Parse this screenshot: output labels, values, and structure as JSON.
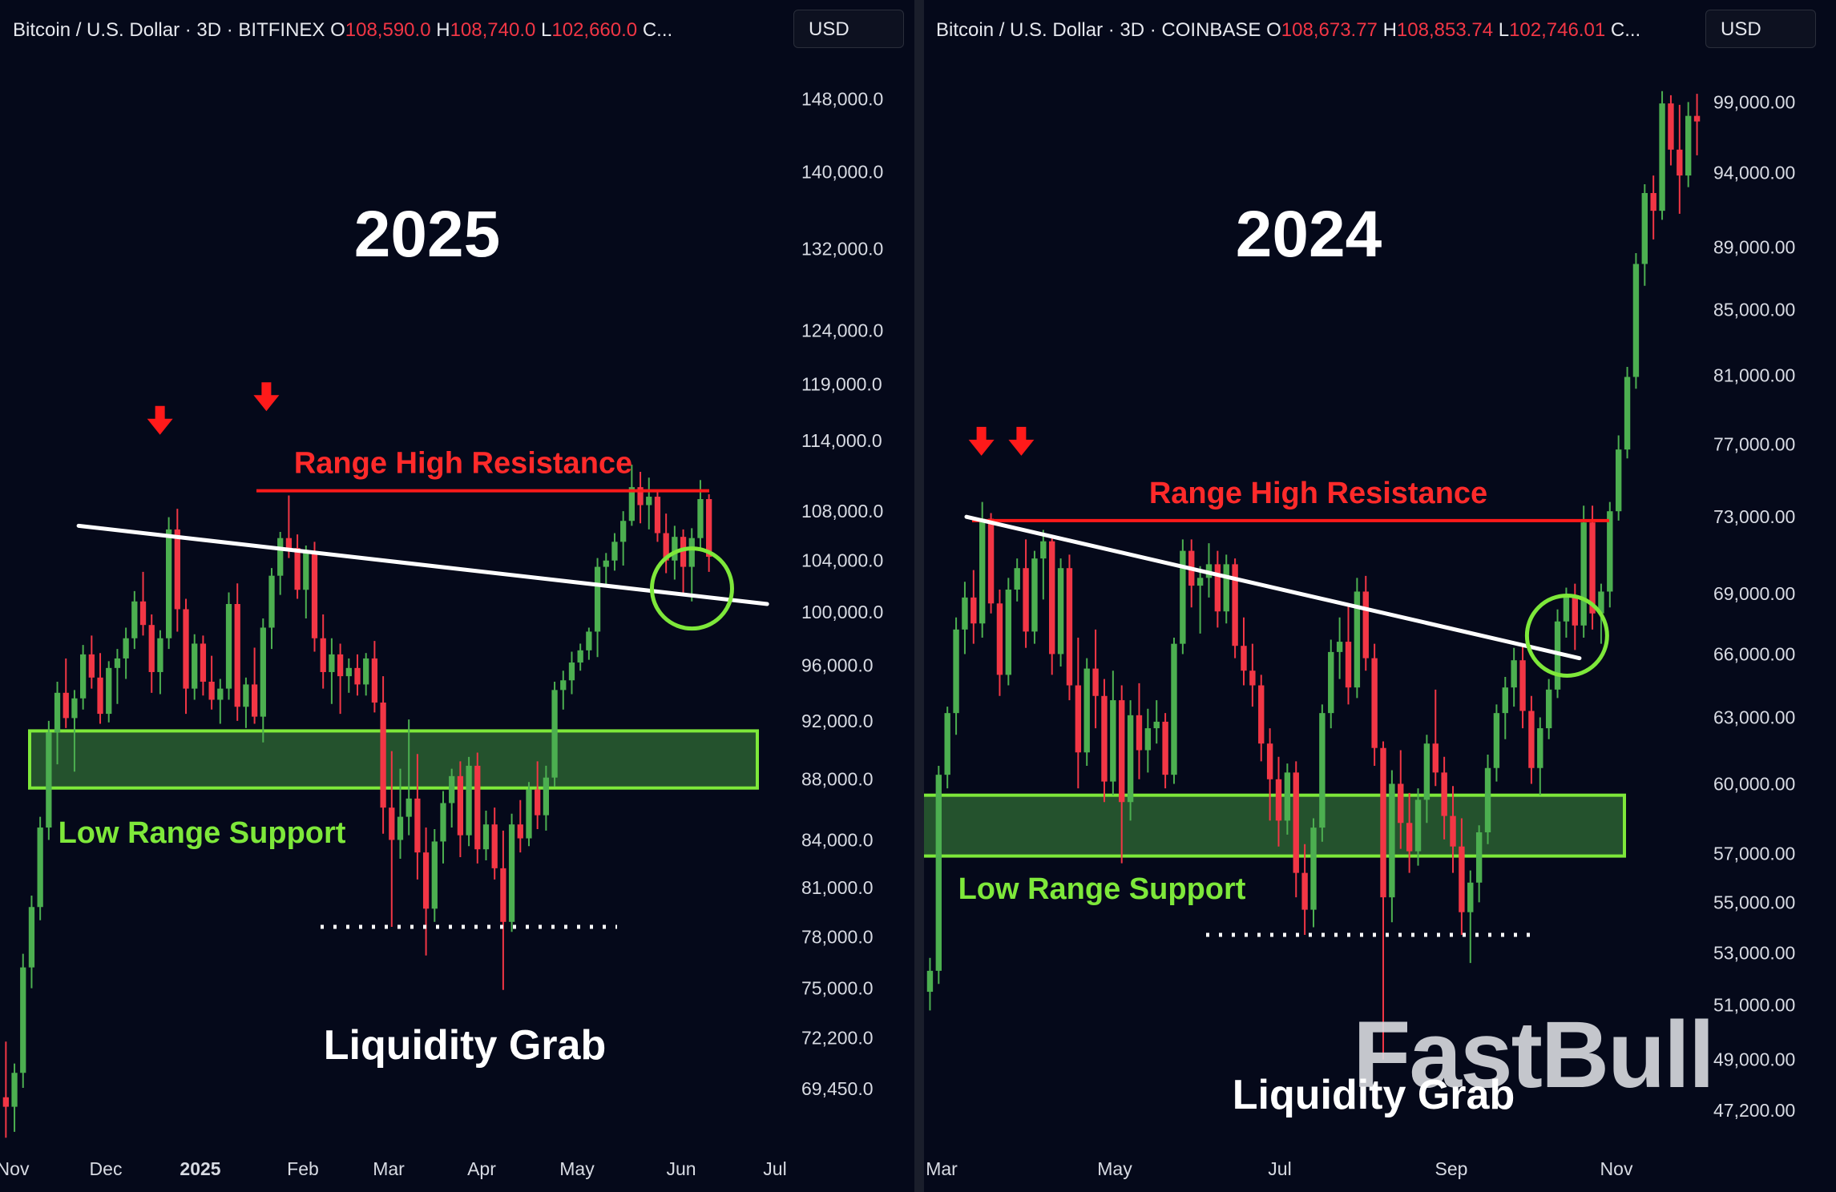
{
  "colors": {
    "up": "#4caf50",
    "down": "#f23645",
    "resistance": "#ff1a1a",
    "support": "#7ee83a",
    "trend": "#ffffff",
    "axis_text": "#d8dbe3",
    "bg": "#05091a"
  },
  "chart_data": [
    {
      "type": "candlestick",
      "header": {
        "symbol": "Bitcoin / U.S. Dollar · 3D · BITFINEX",
        "o_label": "O",
        "o": "108,590.0",
        "h_label": "H",
        "h": "108,740.0",
        "l_label": "L",
        "l": "102,660.0",
        "c_label": "C..."
      },
      "currency": "USD",
      "title": "2025",
      "yscale": "log",
      "ylim": [
        66500,
        152000
      ],
      "y_ticks": [
        "148,000.0",
        "140,000.0",
        "132,000.0",
        "124,000.0",
        "119,000.0",
        "114,000.0",
        "108,000.0",
        "104,000.0",
        "100,000.0",
        "96,000.0",
        "92,000.0",
        "88,000.0",
        "84,000.0",
        "81,000.0",
        "78,000.0",
        "75,000.0",
        "72,200.0",
        "69,450.0"
      ],
      "x_ticks": [
        "Nov",
        "Dec",
        "2025",
        "Feb",
        "Mar",
        "Apr",
        "May",
        "Jun",
        "Jul"
      ],
      "x_range": [
        "2024-11-01",
        "2025-07-01"
      ],
      "annotations": {
        "resistance": "Range High Resistance",
        "support": "Low Range Support",
        "liquidity": "Liquidity Grab"
      },
      "resistance_level": 109700,
      "support_zone": [
        87400,
        91300
      ],
      "liquidity_level": 78600,
      "trendline": [
        [
          "2024-11-21",
          106800
        ],
        [
          "2025-06-29",
          100600
        ]
      ],
      "circle": [
        "2025-06-05",
        101800
      ],
      "arrows": [
        [
          "2024-12-17",
          115200
        ],
        [
          "2025-01-20",
          117300
        ]
      ],
      "candles": [
        [
          69000,
          72000,
          66900,
          68500
        ],
        [
          68500,
          70800,
          67200,
          70300
        ],
        [
          70300,
          77000,
          69500,
          76200
        ],
        [
          76200,
          80500,
          75000,
          79800
        ],
        [
          79800,
          85500,
          79000,
          84800
        ],
        [
          84800,
          92000,
          84000,
          91200
        ],
        [
          91200,
          94800,
          89000,
          94000
        ],
        [
          94000,
          96500,
          91500,
          92200
        ],
        [
          92200,
          94200,
          88500,
          93600
        ],
        [
          93600,
          97500,
          92800,
          96800
        ],
        [
          96800,
          98200,
          94300,
          95100
        ],
        [
          95100,
          96900,
          91800,
          92500
        ],
        [
          92500,
          96300,
          91900,
          95800
        ],
        [
          95800,
          97200,
          93200,
          96500
        ],
        [
          96500,
          98800,
          95000,
          98000
        ],
        [
          98000,
          101600,
          97200,
          100800
        ],
        [
          100800,
          103100,
          98200,
          99000
        ],
        [
          99000,
          99800,
          94000,
          95500
        ],
        [
          95500,
          98600,
          93900,
          98000
        ],
        [
          98000,
          107500,
          97200,
          106500
        ],
        [
          106500,
          108200,
          98500,
          100200
        ],
        [
          100200,
          101000,
          92500,
          94300
        ],
        [
          94300,
          98300,
          93500,
          97600
        ],
        [
          97600,
          98200,
          93800,
          94800
        ],
        [
          94800,
          96700,
          92800,
          93500
        ],
        [
          93500,
          95000,
          91800,
          94300
        ],
        [
          94300,
          101500,
          93500,
          100600
        ],
        [
          100600,
          102200,
          92000,
          93000
        ],
        [
          93000,
          95100,
          91500,
          94600
        ],
        [
          94600,
          97300,
          91800,
          92300
        ],
        [
          92300,
          99500,
          90500,
          98800
        ],
        [
          98800,
          103400,
          97200,
          102800
        ],
        [
          102800,
          106300,
          101300,
          105800
        ],
        [
          105800,
          109300,
          104200,
          105000
        ],
        [
          105000,
          106100,
          101000,
          101700
        ],
        [
          101700,
          105200,
          99500,
          104600
        ],
        [
          104600,
          105500,
          97000,
          98000
        ],
        [
          98000,
          99800,
          94300,
          95500
        ],
        [
          95500,
          98000,
          93200,
          96800
        ],
        [
          96800,
          97600,
          92500,
          95200
        ],
        [
          95200,
          96500,
          94000,
          95800
        ],
        [
          95800,
          96800,
          93800,
          94600
        ],
        [
          94600,
          96900,
          93800,
          96500
        ],
        [
          96500,
          97800,
          92600,
          93300
        ],
        [
          93300,
          95200,
          84400,
          86100
        ],
        [
          86100,
          89900,
          78600,
          84000
        ],
        [
          84000,
          88700,
          82800,
          85500
        ],
        [
          85500,
          92100,
          84300,
          86700
        ],
        [
          86700,
          89700,
          81500,
          83200
        ],
        [
          83200,
          84800,
          76900,
          79700
        ],
        [
          79700,
          84700,
          78900,
          83900
        ],
        [
          83900,
          87200,
          82500,
          86400
        ],
        [
          86400,
          88700,
          84800,
          88200
        ],
        [
          88200,
          89200,
          82900,
          84300
        ],
        [
          84300,
          89500,
          83600,
          88900
        ],
        [
          88900,
          89800,
          82500,
          83400
        ],
        [
          83400,
          85900,
          82700,
          85000
        ],
        [
          85000,
          86100,
          81500,
          82200
        ],
        [
          82200,
          84600,
          74900,
          78900
        ],
        [
          78900,
          85700,
          78300,
          85000
        ],
        [
          85000,
          86600,
          83200,
          84100
        ],
        [
          84100,
          87800,
          83600,
          87300
        ],
        [
          87300,
          89200,
          84700,
          85600
        ],
        [
          85600,
          88900,
          84600,
          88100
        ],
        [
          88100,
          94800,
          87500,
          94200
        ],
        [
          94200,
          95600,
          92800,
          94900
        ],
        [
          94900,
          97000,
          93900,
          96200
        ],
        [
          96200,
          97600,
          95600,
          97100
        ],
        [
          97100,
          98800,
          96400,
          98500
        ],
        [
          98500,
          104200,
          96600,
          103500
        ],
        [
          103500,
          104600,
          102000,
          104000
        ],
        [
          104000,
          106200,
          103200,
          105500
        ],
        [
          105500,
          108000,
          103600,
          107200
        ],
        [
          107200,
          111900,
          106800,
          110000
        ],
        [
          110000,
          111300,
          107000,
          108500
        ],
        [
          108500,
          110800,
          106500,
          109200
        ],
        [
          109200,
          109800,
          105500,
          106200
        ],
        [
          106200,
          107800,
          103000,
          104000
        ],
        [
          104000,
          106800,
          102500,
          105900
        ],
        [
          105900,
          106500,
          101200,
          103500
        ],
        [
          103500,
          106600,
          100800,
          105800
        ],
        [
          105800,
          110600,
          105000,
          109000
        ],
        [
          109000,
          109400,
          103100,
          104300
        ]
      ]
    },
    {
      "type": "candlestick",
      "header": {
        "symbol": "Bitcoin / U.S. Dollar · 3D · COINBASE",
        "o_label": "O",
        "o": "108,673.77",
        "h_label": "H",
        "h": "108,853.74",
        "l_label": "L",
        "l": "102,746.01",
        "c_label": "C..."
      },
      "currency": "USD",
      "title": "2024",
      "yscale": "log",
      "ylim": [
        46000,
        101800
      ],
      "y_ticks": [
        "99,000.00",
        "94,000.00",
        "89,000.00",
        "85,000.00",
        "81,000.00",
        "77,000.00",
        "73,000.00",
        "69,000.00",
        "66,000.00",
        "63,000.00",
        "60,000.00",
        "57,000.00",
        "55,000.00",
        "53,000.00",
        "51,000.00",
        "49,000.00",
        "47,200.00"
      ],
      "x_ticks": [
        "Mar",
        "May",
        "Jul",
        "Sep",
        "Nov"
      ],
      "x_range": [
        "2024-03-01",
        "2024-11-30"
      ],
      "annotations": {
        "resistance": "Range High Resistance",
        "support": "Low Range Support",
        "liquidity": "Liquidity Grab",
        "watermark": "FastBull"
      },
      "resistance_level": 72800,
      "support_zone": [
        56900,
        59500
      ],
      "liquidity_level": 53700,
      "trendline": [
        [
          "2024-03-10",
          73000
        ],
        [
          "2024-11-11",
          65800
        ]
      ],
      "circle": [
        "2024-11-06",
        66900
      ],
      "arrows": [
        [
          "2024-03-16",
          76800
        ],
        [
          "2024-04-01",
          76800
        ]
      ],
      "candles": [
        [
          51500,
          52800,
          50800,
          52300
        ],
        [
          52300,
          60800,
          51800,
          60400
        ],
        [
          60400,
          63500,
          59800,
          63200
        ],
        [
          63200,
          67800,
          62200,
          67200
        ],
        [
          67200,
          69600,
          66000,
          68800
        ],
        [
          68800,
          70200,
          66500,
          67500
        ],
        [
          67500,
          73800,
          66800,
          72900
        ],
        [
          72900,
          73200,
          68000,
          68500
        ],
        [
          68500,
          69200,
          64000,
          65000
        ],
        [
          65000,
          69800,
          64500,
          69200
        ],
        [
          69200,
          70800,
          68600,
          70300
        ],
        [
          70300,
          71800,
          66300,
          67100
        ],
        [
          67100,
          71200,
          66500,
          70800
        ],
        [
          70800,
          72300,
          68700,
          71700
        ],
        [
          71700,
          72000,
          65000,
          66000
        ],
        [
          66000,
          70800,
          65400,
          70300
        ],
        [
          70300,
          71000,
          63800,
          64500
        ],
        [
          64500,
          66800,
          59800,
          61400
        ],
        [
          61400,
          65800,
          60800,
          65300
        ],
        [
          65300,
          67200,
          62500,
          64000
        ],
        [
          64000,
          64800,
          59200,
          60100
        ],
        [
          60100,
          65200,
          59500,
          63800
        ],
        [
          63800,
          64500,
          56600,
          59200
        ],
        [
          59200,
          63800,
          58400,
          63100
        ],
        [
          63100,
          64600,
          60200,
          61500
        ],
        [
          61500,
          63400,
          60500,
          62500
        ],
        [
          62500,
          63800,
          61800,
          62800
        ],
        [
          62800,
          63200,
          59800,
          60400
        ],
        [
          60400,
          66800,
          60000,
          66500
        ],
        [
          66500,
          71800,
          66000,
          71200
        ],
        [
          71200,
          71800,
          68300,
          69400
        ],
        [
          69400,
          70400,
          67000,
          69800
        ],
        [
          69800,
          71600,
          68800,
          70500
        ],
        [
          70500,
          71200,
          67300,
          68100
        ],
        [
          68100,
          71000,
          67500,
          70500
        ],
        [
          70500,
          70800,
          65800,
          66400
        ],
        [
          66400,
          67800,
          64500,
          65200
        ],
        [
          65200,
          66500,
          63500,
          64500
        ],
        [
          64500,
          65000,
          61000,
          61800
        ],
        [
          61800,
          62500,
          58400,
          60200
        ],
        [
          60200,
          61200,
          57300,
          58400
        ],
        [
          58400,
          60900,
          57800,
          60500
        ],
        [
          60500,
          61000,
          55200,
          56200
        ],
        [
          56200,
          57400,
          53700,
          54700
        ],
        [
          54700,
          58500,
          54000,
          58100
        ],
        [
          58100,
          63600,
          57500,
          63200
        ],
        [
          63200,
          66700,
          62500,
          66100
        ],
        [
          66100,
          67800,
          64800,
          66600
        ],
        [
          66600,
          68400,
          63600,
          64400
        ],
        [
          64400,
          69800,
          63900,
          69100
        ],
        [
          69100,
          69900,
          65200,
          65800
        ],
        [
          65800,
          66500,
          60800,
          61600
        ],
        [
          61600,
          61900,
          49000,
          55200
        ],
        [
          55200,
          60600,
          54200,
          60000
        ],
        [
          60000,
          61500,
          57200,
          58300
        ],
        [
          58300,
          59600,
          56200,
          57100
        ],
        [
          57100,
          59800,
          56500,
          59300
        ],
        [
          59300,
          62200,
          58300,
          61800
        ],
        [
          61800,
          64300,
          59900,
          60500
        ],
        [
          60500,
          61200,
          57600,
          58600
        ],
        [
          58600,
          59900,
          56200,
          57300
        ],
        [
          57300,
          58500,
          53700,
          54600
        ],
        [
          54600,
          56300,
          52600,
          55800
        ],
        [
          55800,
          58200,
          55000,
          57900
        ],
        [
          57900,
          61300,
          57400,
          60700
        ],
        [
          60700,
          63600,
          60100,
          63200
        ],
        [
          63200,
          64900,
          62000,
          64400
        ],
        [
          64400,
          66300,
          63500,
          65700
        ],
        [
          65700,
          66500,
          62500,
          63300
        ],
        [
          63300,
          64000,
          60000,
          60700
        ],
        [
          60700,
          63000,
          59500,
          62500
        ],
        [
          62500,
          64800,
          62000,
          64300
        ],
        [
          64300,
          68200,
          63900,
          67600
        ],
        [
          67600,
          69300,
          66800,
          68900
        ],
        [
          68900,
          69500,
          66200,
          67400
        ],
        [
          67400,
          73600,
          66800,
          72700
        ],
        [
          72700,
          73600,
          67200,
          68000
        ],
        [
          68000,
          69500,
          66500,
          69100
        ],
        [
          69100,
          73800,
          68300,
          73300
        ],
        [
          73300,
          77500,
          72800,
          76700
        ],
        [
          76700,
          81500,
          76200,
          80900
        ],
        [
          80900,
          88600,
          80200,
          87900
        ],
        [
          87900,
          93200,
          86500,
          92600
        ],
        [
          92600,
          93800,
          89500,
          91400
        ],
        [
          91400,
          99800,
          90800,
          98900
        ],
        [
          98900,
          99500,
          94500,
          95600
        ],
        [
          95600,
          98800,
          91200,
          93800
        ],
        [
          93800,
          99000,
          93000,
          98000
        ],
        [
          98000,
          99600,
          95200,
          97600
        ]
      ]
    }
  ]
}
